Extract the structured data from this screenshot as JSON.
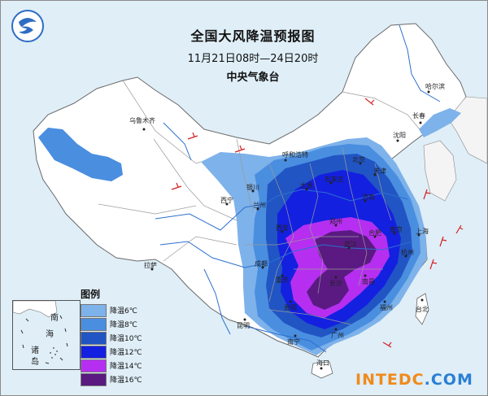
{
  "title": "全国大风降温预报图",
  "time_range": "11月21日08时—24日20时",
  "agency": "中央气象台",
  "watermark": {
    "part1": "INTEDC",
    "part2": ".COM"
  },
  "legend": {
    "title": "图例",
    "items": [
      {
        "label": "降温6℃",
        "color": "#7eb2ea"
      },
      {
        "label": "降温8℃",
        "color": "#4a8ee0"
      },
      {
        "label": "降温10℃",
        "color": "#2155c4"
      },
      {
        "label": "降温12℃",
        "color": "#1420e0"
      },
      {
        "label": "降温14℃",
        "color": "#b62ff0"
      },
      {
        "label": "降温16℃",
        "color": "#5a1a82"
      }
    ]
  },
  "inset_labels": {
    "nan": "南",
    "hai": "海",
    "zhu": "诸",
    "dao": "岛"
  },
  "cities": [
    {
      "name": "哈尔滨"
    },
    {
      "name": "长春"
    },
    {
      "name": "沈阳"
    },
    {
      "name": "乌鲁木齐"
    },
    {
      "name": "呼和浩特"
    },
    {
      "name": "北京"
    },
    {
      "name": "天津"
    },
    {
      "name": "银川"
    },
    {
      "name": "石家庄"
    },
    {
      "name": "太原"
    },
    {
      "name": "济南"
    },
    {
      "name": "西宁"
    },
    {
      "name": "兰州"
    },
    {
      "name": "郑州"
    },
    {
      "name": "西安"
    },
    {
      "name": "拉萨"
    },
    {
      "name": "成都"
    },
    {
      "name": "重庆"
    },
    {
      "name": "武汉"
    },
    {
      "name": "合肥"
    },
    {
      "name": "南京"
    },
    {
      "name": "上海"
    },
    {
      "name": "杭州"
    },
    {
      "name": "长沙"
    },
    {
      "name": "南昌"
    },
    {
      "name": "贵阳"
    },
    {
      "name": "昆明"
    },
    {
      "name": "南宁"
    },
    {
      "name": "广州"
    },
    {
      "name": "福州"
    },
    {
      "name": "台北"
    },
    {
      "name": "海口"
    }
  ]
}
